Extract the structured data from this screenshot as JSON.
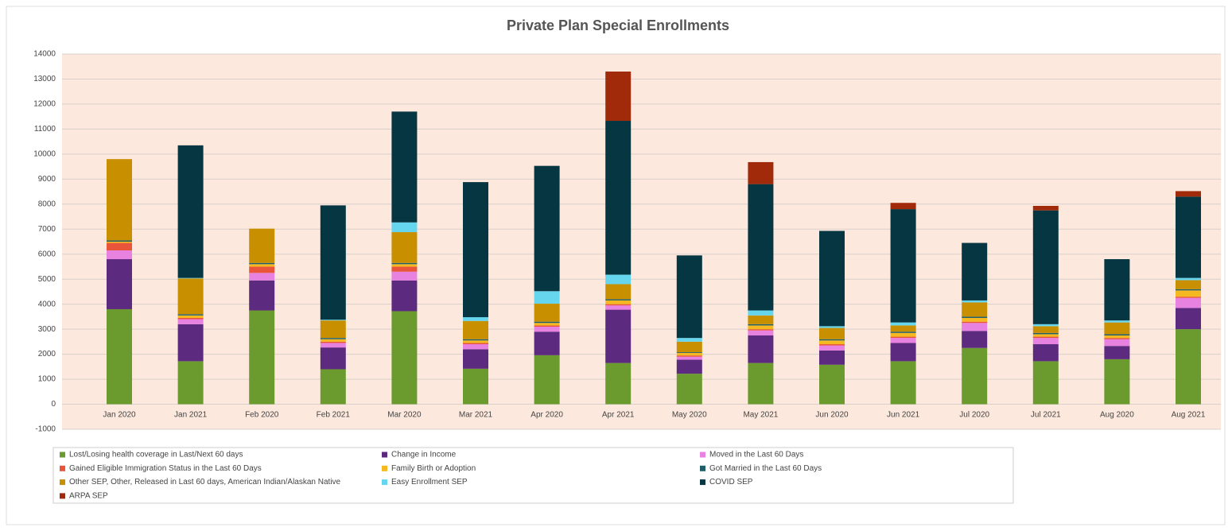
{
  "chart_data": {
    "type": "stacked_bar",
    "title": "Private Plan Special Enrollments",
    "categories": [
      "Jan 2020",
      "Jan 2021",
      "Feb 2020",
      "Feb 2021",
      "Mar 2020",
      "Mar 2021",
      "Apr 2020",
      "Apr 2021",
      "May 2020",
      "May 2021",
      "Jun 2020",
      "Jun 2021",
      "Jul 2020",
      "Jul 2021",
      "Aug 2020",
      "Aug 2021"
    ],
    "ylim": [
      -1000,
      14000
    ],
    "yticks": [
      -1000,
      0,
      1000,
      2000,
      3000,
      4000,
      5000,
      6000,
      7000,
      8000,
      9000,
      10000,
      11000,
      12000,
      13000,
      14000
    ],
    "grid": true,
    "series": [
      {
        "name": "Lost/Losing health coverage in Last/Next 60 days",
        "color": "#6b9a2f",
        "values": [
          3800,
          1720,
          3750,
          1400,
          3720,
          1420,
          1960,
          1650,
          1220,
          1650,
          1580,
          1720,
          2250,
          1720,
          1800,
          3000
        ]
      },
      {
        "name": "Change in Income",
        "color": "#5c2a7e",
        "values": [
          2000,
          1480,
          1200,
          870,
          1230,
          780,
          940,
          2130,
          560,
          1100,
          570,
          730,
          680,
          680,
          530,
          850
        ]
      },
      {
        "name": "Moved in the Last 60 Days",
        "color": "#e882e0",
        "values": [
          350,
          200,
          300,
          180,
          350,
          200,
          200,
          170,
          120,
          200,
          200,
          200,
          320,
          250,
          270,
          400
        ]
      },
      {
        "name": "Gained Eligible Immigration Status in the Last 60 Days",
        "color": "#e8553a",
        "values": [
          300,
          50,
          250,
          50,
          200,
          50,
          50,
          50,
          50,
          50,
          50,
          50,
          50,
          50,
          50,
          50
        ]
      },
      {
        "name": "Family Birth or Adoption",
        "color": "#f5b820",
        "values": [
          50,
          100,
          100,
          100,
          100,
          100,
          100,
          150,
          100,
          150,
          150,
          150,
          150,
          100,
          100,
          250
        ]
      },
      {
        "name": "Got Married in the Last 60 Days",
        "color": "#1f5f6a",
        "values": [
          50,
          50,
          50,
          50,
          50,
          50,
          50,
          50,
          30,
          50,
          50,
          50,
          50,
          50,
          50,
          50
        ]
      },
      {
        "name": "Other SEP, Other, Released in Last 60 days, American Indian/Alaskan Native",
        "color": "#c88f00",
        "values": [
          3250,
          1430,
          1370,
          700,
          1230,
          730,
          720,
          600,
          420,
          350,
          450,
          250,
          570,
          270,
          470,
          360
        ]
      },
      {
        "name": "Easy Enrollment SEP",
        "color": "#66d5ee",
        "values": [
          0,
          20,
          0,
          30,
          390,
          150,
          500,
          380,
          150,
          200,
          70,
          120,
          80,
          80,
          80,
          90
        ]
      },
      {
        "name": "COVID SEP",
        "color": "#063642",
        "values": [
          0,
          5300,
          0,
          4570,
          4430,
          5400,
          5010,
          6150,
          3300,
          5050,
          3810,
          4530,
          2300,
          4550,
          2450,
          3250
        ]
      },
      {
        "name": "ARPA SEP",
        "color": "#a02a0a",
        "values": [
          0,
          0,
          0,
          0,
          0,
          0,
          0,
          1970,
          0,
          880,
          0,
          250,
          0,
          180,
          0,
          220
        ]
      }
    ]
  }
}
